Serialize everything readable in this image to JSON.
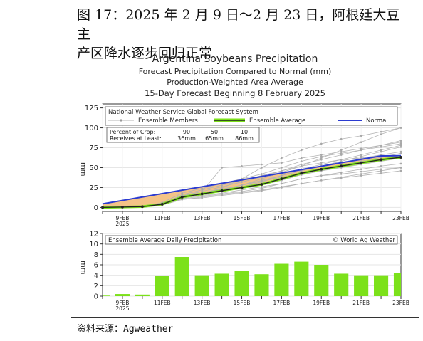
{
  "figure": {
    "caption_line1": "图 17：2025 年 2 月 9 日～2 月 23 日，阿根廷大豆主",
    "caption_line2": "产区降水逐步回归正常",
    "source": "资料来源：Agweather"
  },
  "chart_data": {
    "title_lines": [
      "Argentina Soybeans Precipitation",
      "Forecast Precipitation Compared to Normal (mm)",
      "Production-Weighted Area Average",
      "15-Day Forecast Beginning 8 February 2025"
    ],
    "top_panel": {
      "type": "line",
      "subtitle": "National Weather Service Global Forecast System",
      "ylabel": "mm",
      "ylim": [
        -5,
        130
      ],
      "yticks": [
        0,
        25,
        50,
        75,
        100,
        125
      ],
      "x": [
        0,
        1,
        2,
        3,
        4,
        5,
        6,
        7,
        8,
        9,
        10,
        11,
        12,
        13,
        14,
        15
      ],
      "xtick_labels": [
        {
          "i": 1,
          "label": "9FEB",
          "sub": "2025"
        },
        {
          "i": 3,
          "label": "11FEB"
        },
        {
          "i": 5,
          "label": "13FEB"
        },
        {
          "i": 7,
          "label": "15FEB"
        },
        {
          "i": 9,
          "label": "17FEB"
        },
        {
          "i": 11,
          "label": "19FEB"
        },
        {
          "i": 13,
          "label": "21FEB"
        },
        {
          "i": 15,
          "label": "23FEB"
        }
      ],
      "legend": {
        "members": "Ensemble Members",
        "average": "Ensemble Average",
        "normal": "Normal",
        "position": "top"
      },
      "crop_table": {
        "row1_label": "Percent of Crop:",
        "row2_label": "Receives at Least:",
        "percents": [
          "90",
          "50",
          "10"
        ],
        "amounts": [
          "36mm",
          "65mm",
          "86mm"
        ]
      },
      "series": [
        {
          "name": "Normal",
          "values": [
            4.5,
            8.8,
            13.1,
            17.4,
            21.7,
            26.0,
            30.3,
            34.6,
            38.9,
            43.2,
            47.5,
            51.8,
            56.1,
            60.4,
            64.7,
            65
          ]
        },
        {
          "name": "Ensemble Average",
          "values": [
            0,
            0.5,
            1,
            4,
            13,
            17,
            21,
            25,
            29,
            36,
            43,
            48,
            52,
            56,
            60,
            63
          ]
        }
      ],
      "member_series": [
        [
          0,
          0.5,
          1,
          3,
          10,
          13,
          16,
          19,
          22,
          26,
          30,
          34,
          37,
          40,
          43,
          46
        ],
        [
          0,
          0.5,
          1,
          4,
          12,
          16,
          20,
          24,
          28,
          34,
          41,
          46,
          50,
          54,
          58,
          62
        ],
        [
          0,
          0.5,
          1,
          5,
          15,
          20,
          26,
          32,
          38,
          46,
          54,
          60,
          66,
          72,
          78,
          84
        ],
        [
          0,
          0.5,
          1,
          4,
          13,
          18,
          24,
          36,
          50,
          62,
          72,
          80,
          86,
          90,
          95,
          100
        ],
        [
          0,
          0.5,
          1,
          6,
          18,
          24,
          30,
          36,
          42,
          50,
          58,
          64,
          68,
          72,
          76,
          80
        ],
        [
          0,
          0.5,
          1,
          3,
          11,
          14,
          17,
          20,
          24,
          30,
          36,
          40,
          44,
          48,
          52,
          55
        ],
        [
          0,
          0.5,
          1,
          4,
          14,
          20,
          50,
          52,
          54,
          56,
          62,
          66,
          70,
          74,
          78,
          82
        ],
        [
          0,
          0.5,
          1,
          5,
          12,
          16,
          22,
          28,
          34,
          40,
          46,
          52,
          58,
          64,
          70,
          76
        ],
        [
          0,
          0.5,
          1,
          4,
          16,
          22,
          28,
          34,
          40,
          46,
          52,
          56,
          60,
          62,
          66,
          70
        ],
        [
          0,
          0.5,
          1,
          3,
          10,
          12,
          15,
          18,
          21,
          25,
          30,
          34,
          38,
          42,
          46,
          50
        ],
        [
          0,
          0.5,
          1,
          4,
          13,
          17,
          21,
          26,
          32,
          40,
          48,
          54,
          60,
          66,
          72,
          78
        ],
        [
          0,
          0.5,
          1,
          5,
          14,
          18,
          23,
          28,
          33,
          38,
          43,
          48,
          53,
          58,
          63,
          68
        ],
        [
          0,
          0.5,
          1,
          4,
          12,
          15,
          18,
          22,
          26,
          30,
          36,
          40,
          42,
          45,
          48,
          50
        ],
        [
          0,
          0.5,
          1,
          4,
          13,
          18,
          23,
          28,
          36,
          44,
          52,
          62,
          72,
          82,
          92,
          100
        ]
      ]
    },
    "bottom_panel": {
      "type": "bar",
      "subtitle": "Ensemble Average Daily Precipitation",
      "credit": "© World Ag Weather",
      "ylabel": "mm",
      "ylim": [
        0,
        12
      ],
      "yticks": [
        0,
        2,
        4,
        6,
        8,
        10,
        12
      ],
      "x": [
        0,
        1,
        2,
        3,
        4,
        5,
        6,
        7,
        8,
        9,
        10,
        11,
        12,
        13,
        14,
        15
      ],
      "values": [
        0.1,
        0.4,
        0.3,
        3.9,
        7.5,
        4.0,
        4.3,
        4.8,
        4.2,
        6.2,
        6.6,
        6.0,
        4.3,
        4.0,
        4.0,
        4.5
      ],
      "xtick_labels": [
        {
          "i": 1,
          "label": "9FEB",
          "sub": "2025"
        },
        {
          "i": 3,
          "label": "11FEB"
        },
        {
          "i": 5,
          "label": "13FEB"
        },
        {
          "i": 7,
          "label": "15FEB"
        },
        {
          "i": 9,
          "label": "17FEB"
        },
        {
          "i": 11,
          "label": "19FEB"
        },
        {
          "i": 13,
          "label": "21FEB"
        },
        {
          "i": 15,
          "label": "23FEB"
        }
      ]
    },
    "colors": {
      "normal": "#2b3bd1",
      "average": "#222222",
      "members": "#b4b4b4",
      "fill": "#f2b872",
      "bars": "#7ce11a"
    }
  }
}
